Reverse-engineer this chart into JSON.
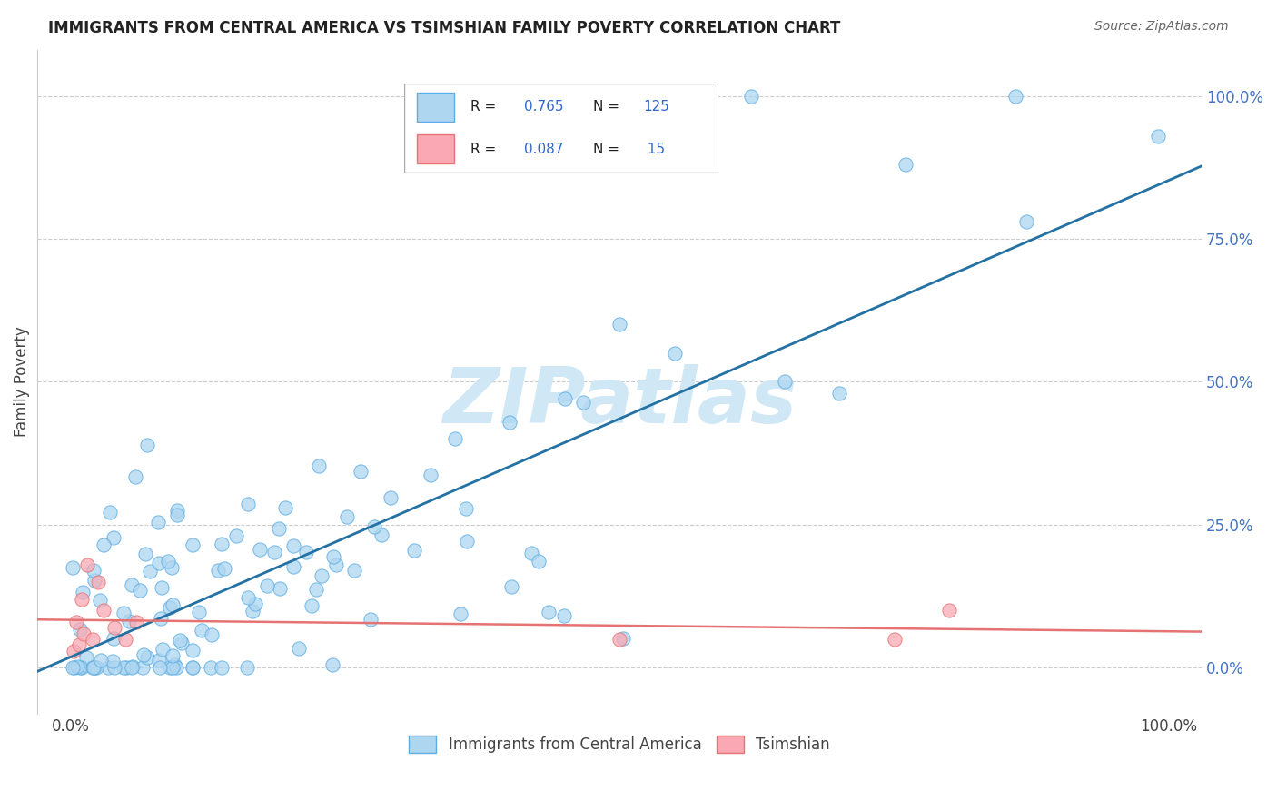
{
  "title": "IMMIGRANTS FROM CENTRAL AMERICA VS TSIMSHIAN FAMILY POVERTY CORRELATION CHART",
  "source": "Source: ZipAtlas.com",
  "ylabel": "Family Poverty",
  "legend_blue_label": "Immigrants from Central America",
  "legend_pink_label": "Tsimshian",
  "legend_r_blue": "0.765",
  "legend_n_blue": "125",
  "legend_r_pink": "0.087",
  "legend_n_pink": "15",
  "blue_color": "#AED6F1",
  "pink_color": "#F1948A",
  "blue_face_color": "#AED6F1",
  "pink_face_color": "#F9A8B4",
  "blue_edge_color": "#5DADE2",
  "pink_edge_color": "#E57373",
  "blue_line_color": "#2471A3",
  "pink_line_color": "#E57373",
  "watermark_color": "#D5E8F5",
  "grid_color": "#CCCCCC",
  "title_color": "#222222",
  "source_color": "#666666",
  "ytick_color": "#4472C4",
  "xtick_color": "#444444",
  "ylabel_color": "#444444"
}
